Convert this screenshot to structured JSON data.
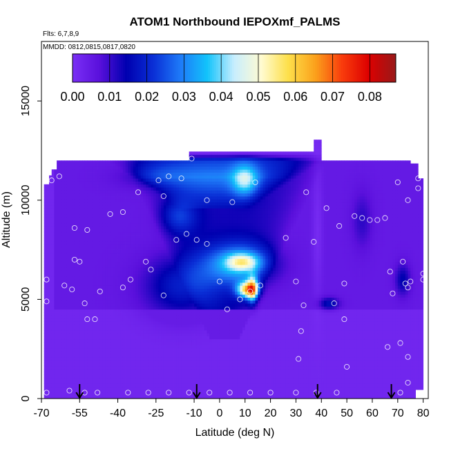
{
  "chart_data": {
    "type": "heatmap",
    "title": "ATOM1 Northbound IEPOXmf_PALMS",
    "info_lines": [
      "Flts: 6,7,8,9",
      "MMDD: 0812,0815,0817,0820"
    ],
    "xlabel": "Latitude (deg N)",
    "ylabel": "Altitude (m)",
    "xlim": [
      -70,
      82
    ],
    "ylim": [
      0,
      18000
    ],
    "x_ticks": [
      -70,
      -55,
      -40,
      -25,
      -10,
      0,
      10,
      20,
      30,
      40,
      50,
      60,
      70,
      80
    ],
    "y_ticks": [
      0,
      5000,
      10000,
      15000
    ],
    "colorbar": {
      "range": [
        0,
        0.087
      ],
      "ticks": [
        0.0,
        0.01,
        0.02,
        0.03,
        0.04,
        0.05,
        0.06,
        0.07,
        0.08
      ],
      "tick_labels": [
        "0.00",
        "0.01",
        "0.02",
        "0.03",
        "0.04",
        "0.05",
        "0.06",
        "0.07",
        "0.08"
      ],
      "colors": [
        "#7a2ff5",
        "#5a10dc",
        "#0000b0",
        "#0a2fd6",
        "#1e7af8",
        "#12c3fb",
        "#c8eefe",
        "#fffbd2",
        "#fde04b",
        "#fba21c",
        "#f93c0c",
        "#dc0000",
        "#981a1a"
      ]
    },
    "flight_arrow_latitudes": [
      -55,
      -9,
      38.5,
      67.5
    ],
    "sample_points": [
      {
        "x": -68,
        "y": 300
      },
      {
        "x": -59,
        "y": 400
      },
      {
        "x": -53,
        "y": 300
      },
      {
        "x": -48,
        "y": 300
      },
      {
        "x": -36,
        "y": 300
      },
      {
        "x": -28,
        "y": 300
      },
      {
        "x": -20,
        "y": 300
      },
      {
        "x": -12,
        "y": 300
      },
      {
        "x": -4,
        "y": 300
      },
      {
        "x": 4,
        "y": 300
      },
      {
        "x": 12,
        "y": 300
      },
      {
        "x": 20,
        "y": 300
      },
      {
        "x": 30,
        "y": 300
      },
      {
        "x": 38,
        "y": 300
      },
      {
        "x": 46,
        "y": 300
      },
      {
        "x": 71,
        "y": 300
      },
      {
        "x": 74,
        "y": 800
      },
      {
        "x": -68,
        "y": 4900
      },
      {
        "x": -68,
        "y": 6000
      },
      {
        "x": -61,
        "y": 5700
      },
      {
        "x": -58,
        "y": 5500
      },
      {
        "x": -53,
        "y": 4800
      },
      {
        "x": -47,
        "y": 5400
      },
      {
        "x": -38,
        "y": 5600
      },
      {
        "x": -35,
        "y": 6000
      },
      {
        "x": -52,
        "y": 4000
      },
      {
        "x": -49,
        "y": 4000
      },
      {
        "x": -57,
        "y": 7000
      },
      {
        "x": -55,
        "y": 6900
      },
      {
        "x": -29,
        "y": 6900
      },
      {
        "x": -27,
        "y": 6500
      },
      {
        "x": -22,
        "y": 5200
      },
      {
        "x": -57,
        "y": 8600
      },
      {
        "x": -52,
        "y": 8500
      },
      {
        "x": -43,
        "y": 9300
      },
      {
        "x": -38,
        "y": 9400
      },
      {
        "x": -32,
        "y": 10400
      },
      {
        "x": -22,
        "y": 10200
      },
      {
        "x": -66,
        "y": 11000
      },
      {
        "x": -63,
        "y": 11200
      },
      {
        "x": -24,
        "y": 11000
      },
      {
        "x": -20,
        "y": 11200
      },
      {
        "x": -15,
        "y": 11100
      },
      {
        "x": -11,
        "y": 12100
      },
      {
        "x": -5,
        "y": 10000
      },
      {
        "x": 5,
        "y": 9900
      },
      {
        "x": 14,
        "y": 10900
      },
      {
        "x": 34,
        "y": 10400
      },
      {
        "x": 42,
        "y": 9600
      },
      {
        "x": -17,
        "y": 8000
      },
      {
        "x": -13,
        "y": 8300
      },
      {
        "x": -9,
        "y": 8000
      },
      {
        "x": -5,
        "y": 7800
      },
      {
        "x": 26,
        "y": 8100
      },
      {
        "x": 37,
        "y": 7900
      },
      {
        "x": 47,
        "y": 8700
      },
      {
        "x": 0,
        "y": 5900
      },
      {
        "x": 3,
        "y": 4500
      },
      {
        "x": 8,
        "y": 5000
      },
      {
        "x": 12,
        "y": 5400
      },
      {
        "x": 16,
        "y": 5700
      },
      {
        "x": 30,
        "y": 5900
      },
      {
        "x": 33,
        "y": 4700
      },
      {
        "x": 45,
        "y": 4800
      },
      {
        "x": 49,
        "y": 5800
      },
      {
        "x": 49,
        "y": 4000
      },
      {
        "x": 32,
        "y": 3400
      },
      {
        "x": 31,
        "y": 2000
      },
      {
        "x": 50,
        "y": 1600
      },
      {
        "x": 53,
        "y": 9200
      },
      {
        "x": 56,
        "y": 9100
      },
      {
        "x": 59,
        "y": 9000
      },
      {
        "x": 62,
        "y": 9000
      },
      {
        "x": 65,
        "y": 9100
      },
      {
        "x": 67,
        "y": 6400
      },
      {
        "x": 68,
        "y": 5300
      },
      {
        "x": 73,
        "y": 5800
      },
      {
        "x": 74,
        "y": 5600
      },
      {
        "x": 75,
        "y": 5900
      },
      {
        "x": 72,
        "y": 6900
      },
      {
        "x": 80,
        "y": 6000
      },
      {
        "x": 80,
        "y": 6300
      },
      {
        "x": 66,
        "y": 2600
      },
      {
        "x": 71,
        "y": 2800
      },
      {
        "x": 74,
        "y": 2100
      },
      {
        "x": 70,
        "y": 10900
      },
      {
        "x": 74,
        "y": 10000
      },
      {
        "x": 77,
        "y": 12000
      },
      {
        "x": 78,
        "y": 10600
      },
      {
        "x": 78,
        "y": 11100
      }
    ]
  }
}
